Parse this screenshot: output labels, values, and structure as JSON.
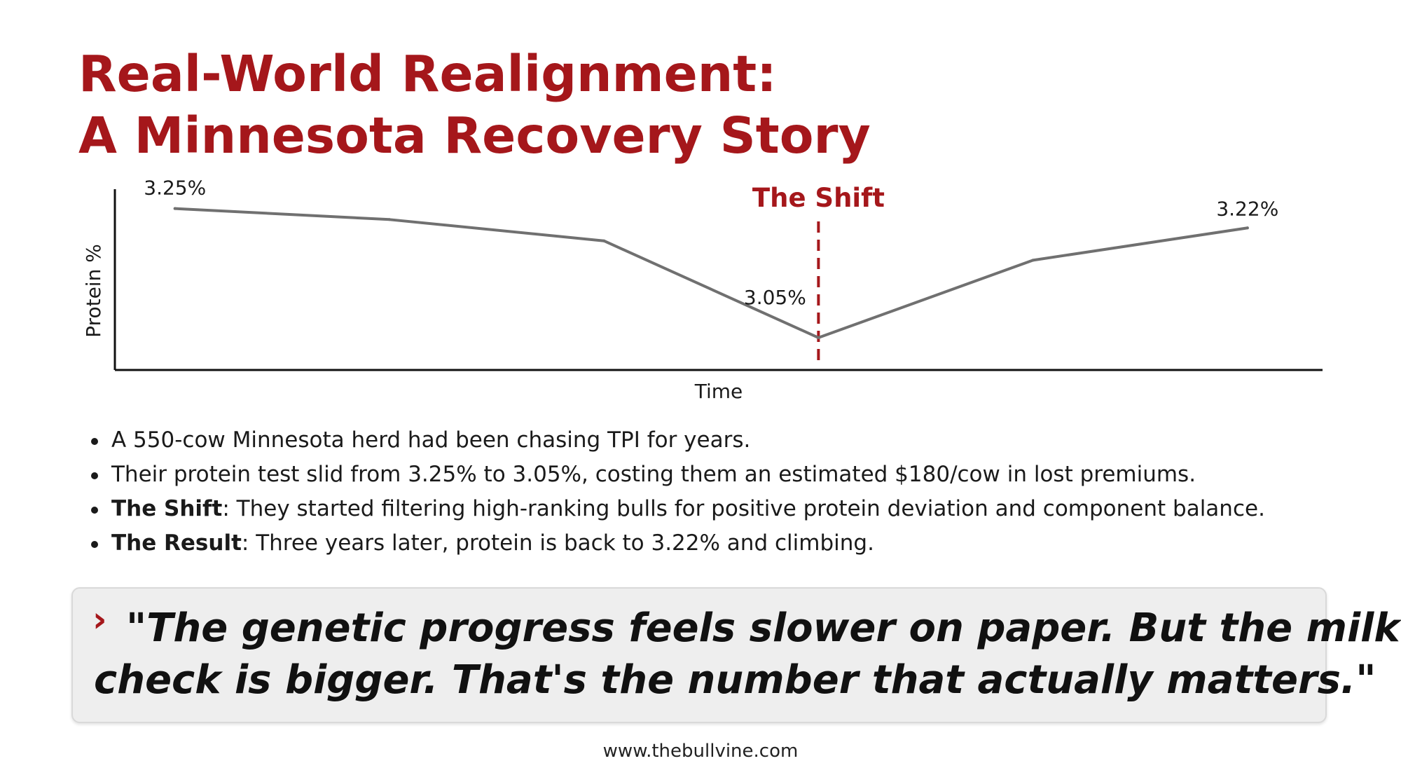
{
  "title": {
    "line1": "Real-World Realignment:",
    "line2": "A Minnesota Recovery Story"
  },
  "chart_data": {
    "type": "line",
    "xlabel": "Time",
    "ylabel": "Protein %",
    "x": [
      0,
      1,
      2,
      3,
      4,
      5
    ],
    "series": [
      {
        "values": [
          3.25,
          3.233,
          3.2,
          3.05,
          3.17,
          3.22
        ],
        "color": "#707070"
      }
    ],
    "ylim": [
      3.0,
      3.28
    ],
    "xlim": [
      -0.28,
      5.35
    ],
    "data_labels": [
      {
        "index": 0,
        "text": "3.25%"
      },
      {
        "index": 3,
        "text": "3.05%"
      },
      {
        "index": 5,
        "text": "3.22%"
      }
    ],
    "annotation": {
      "x": 3,
      "text": "The Shift",
      "color": "#a5171b"
    },
    "grid": false
  },
  "bullets": [
    {
      "text": "A 550-cow Minnesota herd had been chasing TPI for years."
    },
    {
      "text": "Their protein test slid from 3.25% to 3.05%, costing them an estimated $180/cow in lost premiums."
    },
    {
      "bold": "The Shift",
      "text": ": They started filtering high-ranking bulls for positive protein deviation and component balance."
    },
    {
      "bold": "The Result",
      "text": ": Three years later, protein is back to 3.22% and climbing."
    }
  ],
  "quote": {
    "marker": "›",
    "line1": "\"The genetic progress feels slower on paper. But the milk",
    "line2": "check is bigger. That's the number that actually matters.\""
  },
  "footer": "www.thebullvine.com",
  "colors": {
    "accent": "#a5171b",
    "line": "#707070",
    "axis": "#111111",
    "quote_bg": "#eeeeee"
  }
}
